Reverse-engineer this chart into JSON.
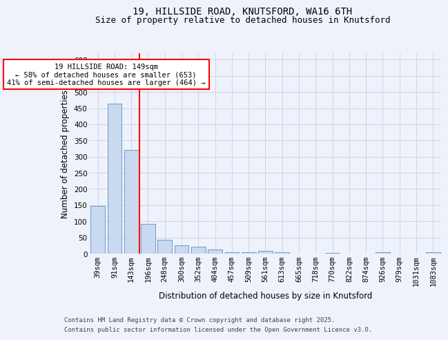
{
  "title_line1": "19, HILLSIDE ROAD, KNUTSFORD, WA16 6TH",
  "title_line2": "Size of property relative to detached houses in Knutsford",
  "xlabel": "Distribution of detached houses by size in Knutsford",
  "ylabel": "Number of detached properties",
  "categories": [
    "39sqm",
    "91sqm",
    "143sqm",
    "196sqm",
    "248sqm",
    "300sqm",
    "352sqm",
    "404sqm",
    "457sqm",
    "509sqm",
    "561sqm",
    "613sqm",
    "665sqm",
    "718sqm",
    "770sqm",
    "822sqm",
    "874sqm",
    "926sqm",
    "979sqm",
    "1031sqm",
    "1083sqm"
  ],
  "values": [
    148,
    465,
    320,
    93,
    42,
    25,
    22,
    13,
    5,
    5,
    8,
    5,
    0,
    0,
    3,
    0,
    0,
    5,
    0,
    0,
    5
  ],
  "bar_color": "#c9d9f0",
  "bar_edge_color": "#5a8fc3",
  "annotation_text": "19 HILLSIDE ROAD: 149sqm\n← 58% of detached houses are smaller (653)\n41% of semi-detached houses are larger (464) →",
  "annotation_box_color": "white",
  "annotation_box_edge_color": "red",
  "vline_color": "red",
  "ylim": [
    0,
    620
  ],
  "yticks": [
    0,
    50,
    100,
    150,
    200,
    250,
    300,
    350,
    400,
    450,
    500,
    550,
    600
  ],
  "footer_line1": "Contains HM Land Registry data © Crown copyright and database right 2025.",
  "footer_line2": "Contains public sector information licensed under the Open Government Licence v3.0.",
  "background_color": "#eef2fa",
  "plot_bg_color": "#eef2fa",
  "grid_color": "#c8d0e8",
  "title_fontsize": 10,
  "subtitle_fontsize": 9,
  "axis_label_fontsize": 8.5,
  "tick_fontsize": 7.5,
  "footer_fontsize": 6.5
}
